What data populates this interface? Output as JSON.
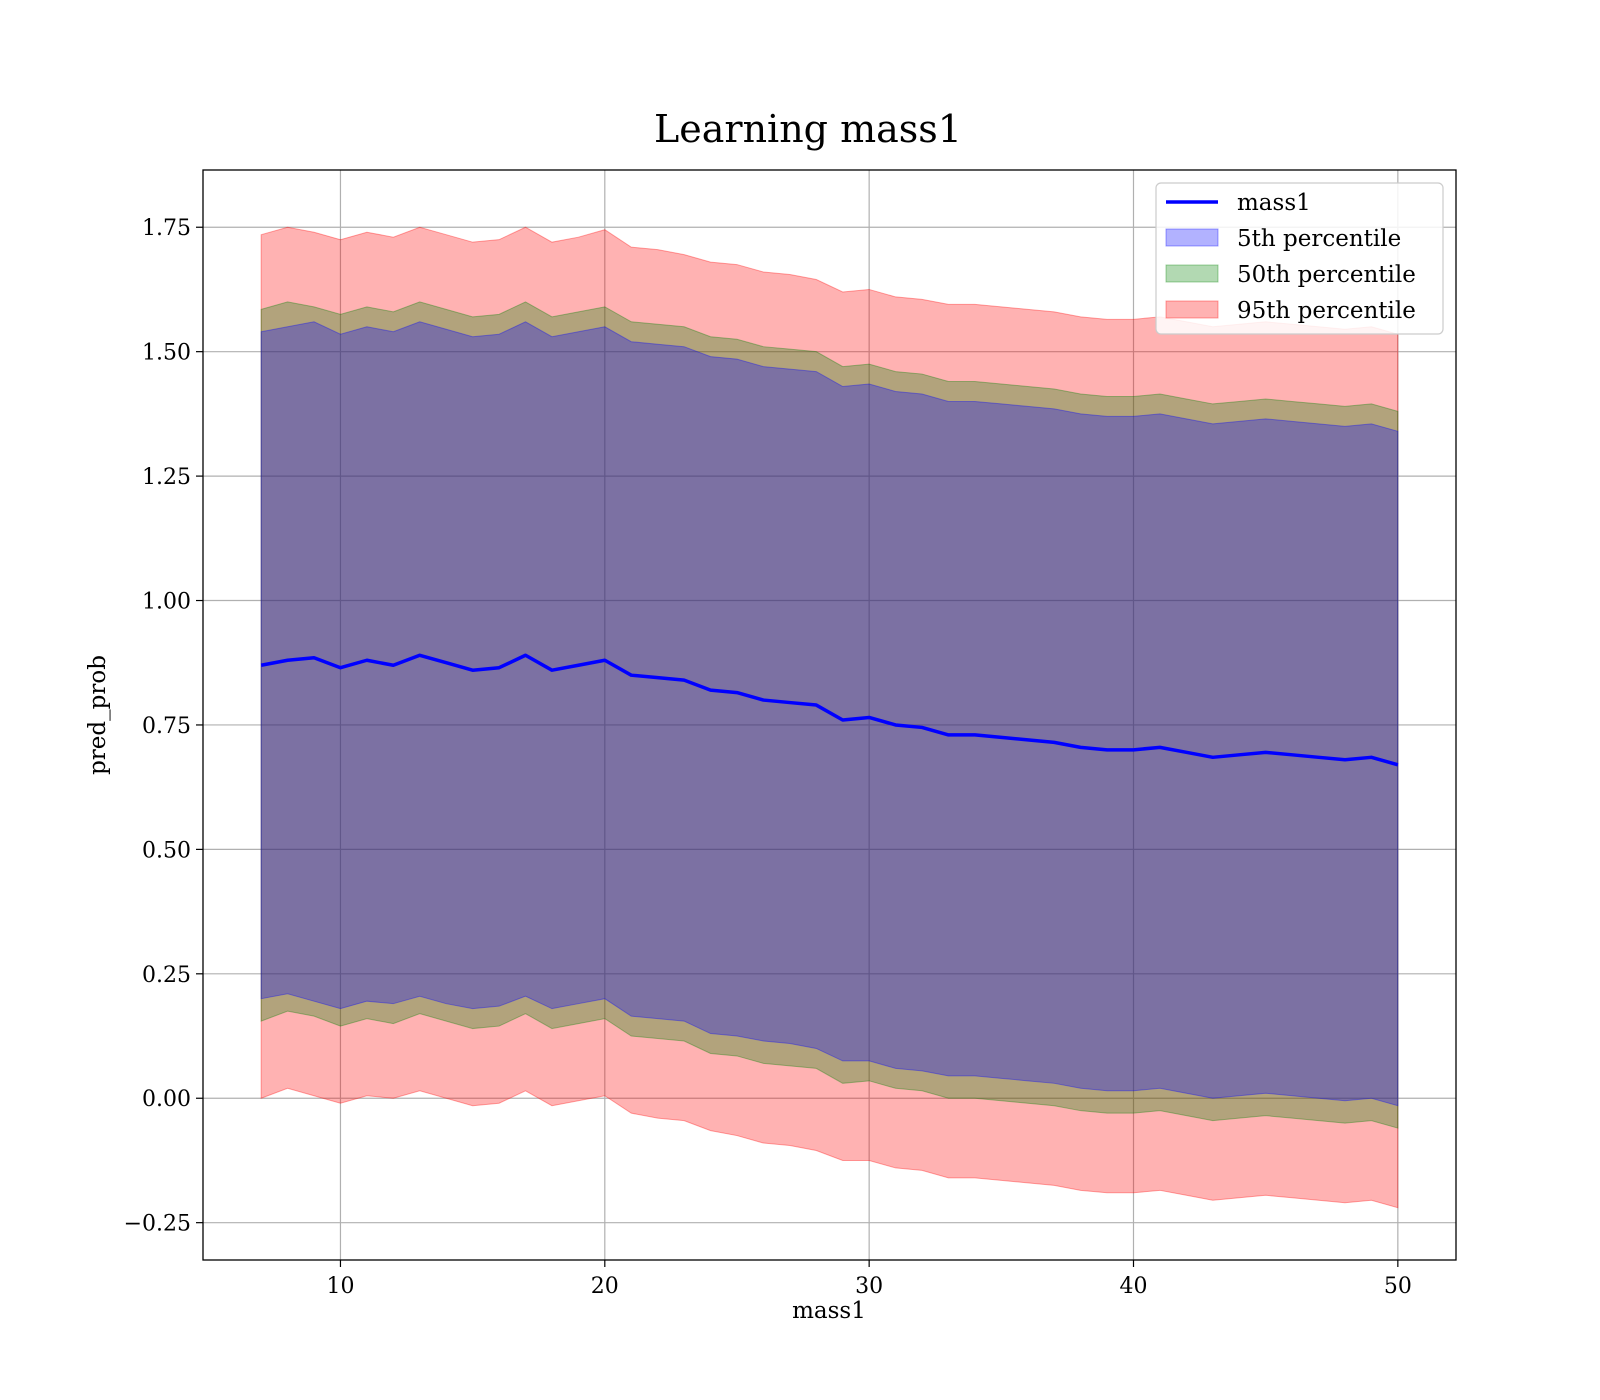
{
  "chart_data": {
    "type": "line",
    "title": "Learning mass1",
    "xlabel": "mass1",
    "ylabel": "pred_prob",
    "xlim": [
      4.8,
      52.2
    ],
    "ylim": [
      -0.325,
      1.865
    ],
    "x_ticks": [
      10,
      20,
      30,
      40,
      50
    ],
    "x_tick_labels": [
      "10",
      "20",
      "30",
      "40",
      "50"
    ],
    "y_ticks": [
      -0.25,
      0.0,
      0.25,
      0.5,
      0.75,
      1.0,
      1.25,
      1.5,
      1.75
    ],
    "y_tick_labels": [
      "−0.25",
      "0.00",
      "0.25",
      "0.50",
      "0.75",
      "1.00",
      "1.25",
      "1.50",
      "1.75"
    ],
    "grid": true,
    "legend_position": "top-right",
    "x": [
      7,
      8,
      9,
      10,
      11,
      12,
      13,
      14,
      15,
      16,
      17,
      18,
      19,
      20,
      21,
      22,
      23,
      24,
      25,
      26,
      27,
      28,
      29,
      30,
      31,
      32,
      33,
      34,
      35,
      36,
      37,
      38,
      39,
      40,
      41,
      42,
      43,
      44,
      45,
      46,
      47,
      48,
      49,
      50
    ],
    "series": [
      {
        "name": "mass1",
        "kind": "line",
        "color": "#0000ff",
        "values": [
          0.87,
          0.88,
          0.885,
          0.865,
          0.88,
          0.87,
          0.89,
          0.875,
          0.86,
          0.865,
          0.89,
          0.86,
          0.87,
          0.88,
          0.85,
          0.845,
          0.84,
          0.82,
          0.815,
          0.8,
          0.795,
          0.79,
          0.76,
          0.765,
          0.75,
          0.745,
          0.73,
          0.73,
          0.725,
          0.72,
          0.715,
          0.705,
          0.7,
          0.7,
          0.705,
          0.695,
          0.685,
          0.69,
          0.695,
          0.69,
          0.685,
          0.68,
          0.685,
          0.67
        ]
      },
      {
        "name": "5th percentile",
        "kind": "band",
        "color": "#0000ff",
        "opacity": 0.3,
        "lower": [
          0.2,
          0.21,
          0.195,
          0.18,
          0.195,
          0.19,
          0.205,
          0.19,
          0.18,
          0.185,
          0.205,
          0.18,
          0.19,
          0.2,
          0.165,
          0.16,
          0.155,
          0.13,
          0.125,
          0.115,
          0.11,
          0.1,
          0.075,
          0.075,
          0.06,
          0.055,
          0.045,
          0.045,
          0.04,
          0.035,
          0.03,
          0.02,
          0.015,
          0.015,
          0.02,
          0.01,
          0.0,
          0.005,
          0.01,
          0.005,
          0.0,
          -0.005,
          0.0,
          -0.015
        ],
        "upper": [
          1.54,
          1.55,
          1.56,
          1.535,
          1.55,
          1.54,
          1.56,
          1.545,
          1.53,
          1.535,
          1.56,
          1.53,
          1.54,
          1.55,
          1.52,
          1.515,
          1.51,
          1.49,
          1.485,
          1.47,
          1.465,
          1.46,
          1.43,
          1.435,
          1.42,
          1.415,
          1.4,
          1.4,
          1.395,
          1.39,
          1.385,
          1.375,
          1.37,
          1.37,
          1.375,
          1.365,
          1.355,
          1.36,
          1.365,
          1.36,
          1.355,
          1.35,
          1.355,
          1.34
        ]
      },
      {
        "name": "50th percentile",
        "kind": "band",
        "color": "#008000",
        "opacity": 0.3,
        "lower": [
          0.155,
          0.175,
          0.165,
          0.145,
          0.16,
          0.15,
          0.17,
          0.155,
          0.14,
          0.145,
          0.17,
          0.14,
          0.15,
          0.16,
          0.125,
          0.12,
          0.115,
          0.09,
          0.085,
          0.07,
          0.065,
          0.06,
          0.03,
          0.035,
          0.02,
          0.015,
          0.0,
          0.0,
          -0.005,
          -0.01,
          -0.015,
          -0.025,
          -0.03,
          -0.03,
          -0.025,
          -0.035,
          -0.045,
          -0.04,
          -0.035,
          -0.04,
          -0.045,
          -0.05,
          -0.045,
          -0.06
        ],
        "upper": [
          1.585,
          1.6,
          1.59,
          1.575,
          1.59,
          1.58,
          1.6,
          1.585,
          1.57,
          1.575,
          1.6,
          1.57,
          1.58,
          1.59,
          1.56,
          1.555,
          1.55,
          1.53,
          1.525,
          1.51,
          1.505,
          1.5,
          1.47,
          1.475,
          1.46,
          1.455,
          1.44,
          1.44,
          1.435,
          1.43,
          1.425,
          1.415,
          1.41,
          1.41,
          1.415,
          1.405,
          1.395,
          1.4,
          1.405,
          1.4,
          1.395,
          1.39,
          1.395,
          1.38
        ]
      },
      {
        "name": "95th percentile",
        "kind": "band",
        "color": "#ff0000",
        "opacity": 0.3,
        "lower": [
          0.0,
          0.02,
          0.005,
          -0.01,
          0.005,
          0.0,
          0.015,
          0.0,
          -0.015,
          -0.01,
          0.015,
          -0.015,
          -0.005,
          0.005,
          -0.03,
          -0.04,
          -0.045,
          -0.065,
          -0.075,
          -0.09,
          -0.095,
          -0.105,
          -0.125,
          -0.125,
          -0.14,
          -0.145,
          -0.16,
          -0.16,
          -0.165,
          -0.17,
          -0.175,
          -0.185,
          -0.19,
          -0.19,
          -0.185,
          -0.195,
          -0.205,
          -0.2,
          -0.195,
          -0.2,
          -0.205,
          -0.21,
          -0.205,
          -0.22
        ],
        "upper": [
          1.735,
          1.75,
          1.74,
          1.725,
          1.74,
          1.73,
          1.75,
          1.735,
          1.72,
          1.725,
          1.75,
          1.72,
          1.73,
          1.745,
          1.71,
          1.705,
          1.695,
          1.68,
          1.675,
          1.66,
          1.655,
          1.645,
          1.62,
          1.625,
          1.61,
          1.605,
          1.595,
          1.595,
          1.59,
          1.585,
          1.58,
          1.57,
          1.565,
          1.565,
          1.57,
          1.56,
          1.55,
          1.555,
          1.56,
          1.555,
          1.55,
          1.545,
          1.55,
          1.535
        ]
      }
    ]
  }
}
